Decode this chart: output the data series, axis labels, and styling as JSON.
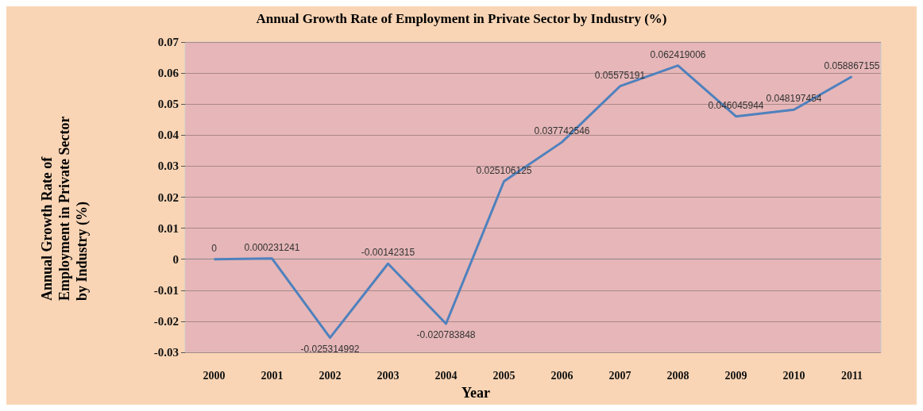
{
  "chart_data": {
    "type": "line",
    "title": "Annual Growth Rate of Employment in Private Sector by Industry (%)",
    "xlabel": "Year",
    "ylabel": "Annual Growth Rate of Employment in Private Sector by Industry (%)",
    "categories": [
      "2000",
      "2001",
      "2002",
      "2003",
      "2004",
      "2005",
      "2006",
      "2007",
      "2008",
      "2009",
      "2010",
      "2011"
    ],
    "series": [
      {
        "color": "#4f81bd",
        "values": [
          0,
          0.000231241,
          -0.025314992,
          -0.00142315,
          -0.020783848,
          0.025106125,
          0.037742546,
          0.05575191,
          0.062419006,
          0.046045944,
          0.048197454,
          0.058867155
        ]
      }
    ],
    "ylim": [
      -0.03,
      0.07
    ],
    "yticks": [
      -0.03,
      -0.02,
      -0.01,
      0,
      0.01,
      0.02,
      0.03,
      0.04,
      0.05,
      0.06,
      0.07
    ],
    "grid": "y",
    "data_labels": true,
    "marker": "none"
  }
}
